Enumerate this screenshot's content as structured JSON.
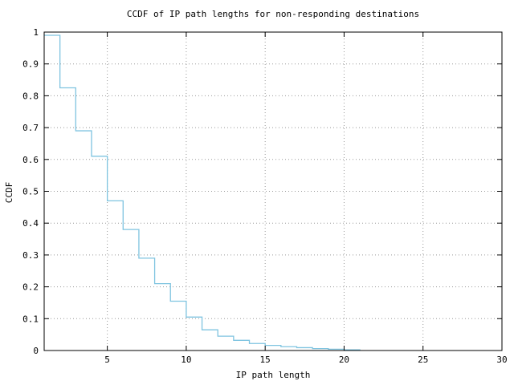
{
  "chart_data": {
    "type": "line",
    "subtype": "step-ccdf",
    "title": "CCDF of IP path lengths for non-responding destinations",
    "xlabel": "IP path length",
    "ylabel": "CCDF",
    "x": [
      1,
      2,
      3,
      4,
      5,
      6,
      7,
      8,
      9,
      10,
      11,
      12,
      13,
      14,
      15,
      16,
      17,
      18,
      19,
      20,
      21
    ],
    "y": [
      0.99,
      0.825,
      0.69,
      0.61,
      0.47,
      0.38,
      0.29,
      0.21,
      0.155,
      0.105,
      0.065,
      0.045,
      0.032,
      0.022,
      0.016,
      0.012,
      0.009,
      0.006,
      0.004,
      0.002,
      0.0
    ],
    "xlim": [
      1,
      30
    ],
    "ylim": [
      0,
      1
    ],
    "xticks": {
      "values": [
        5,
        10,
        15,
        20,
        25,
        30
      ],
      "labels": [
        "5",
        "10",
        "15",
        "20",
        "25",
        "30"
      ]
    },
    "yticks": {
      "values": [
        0,
        0.1,
        0.2,
        0.3,
        0.4,
        0.5,
        0.6,
        0.7,
        0.8,
        0.9,
        1
      ],
      "labels": [
        "0",
        "0.1",
        "0.2",
        "0.3",
        "0.4",
        "0.5",
        "0.6",
        "0.7",
        "0.8",
        "0.9",
        "1"
      ]
    },
    "grid": "dotted",
    "legend": "none",
    "colors": {
      "line": "#7fc4e0",
      "axis": "#000000",
      "grid": "#999999",
      "background": "#ffffff"
    }
  }
}
